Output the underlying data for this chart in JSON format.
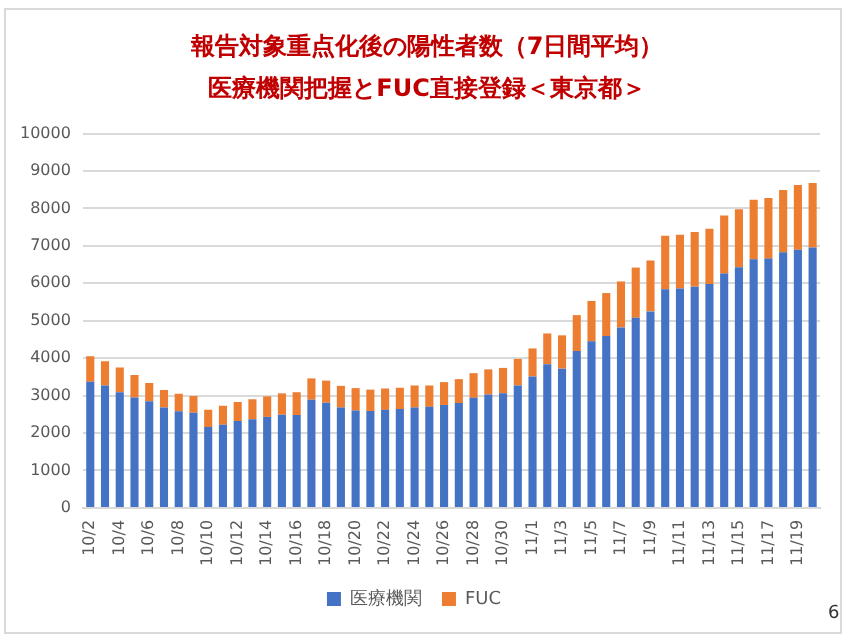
{
  "chart_data": {
    "type": "bar",
    "title": "報告対象重点化後の陽性者数（7日間平均）",
    "subtitle": "医療機関把握とFUC直接登録＜東京都＞",
    "categories": [
      "10/2",
      null,
      "10/4",
      null,
      "10/6",
      null,
      "10/8",
      null,
      "10/10",
      null,
      "10/12",
      null,
      "10/14",
      null,
      "10/16",
      null,
      "10/18",
      null,
      "10/20",
      null,
      "10/22",
      null,
      "10/24",
      null,
      "10/26",
      null,
      "10/28",
      null,
      "10/30",
      null,
      "11/1",
      null,
      "11/3",
      null,
      "11/5",
      null,
      "11/7",
      null,
      "11/9",
      null,
      "11/11",
      null,
      "11/13",
      null,
      "11/15",
      null,
      "11/17",
      null,
      "11/19",
      null
    ],
    "series": [
      {
        "name": "医療機関",
        "color": "#4472c4",
        "values": [
          3370,
          3270,
          3090,
          2950,
          2850,
          2680,
          2580,
          2540,
          2160,
          2220,
          2320,
          2370,
          2430,
          2490,
          2480,
          2890,
          2810,
          2680,
          2600,
          2590,
          2620,
          2640,
          2680,
          2700,
          2750,
          2800,
          2940,
          3030,
          3060,
          3270,
          3510,
          3840,
          3720,
          4190,
          4450,
          4590,
          4820,
          5080,
          5250,
          5840,
          5860,
          5910,
          5980,
          6260,
          6430,
          6640,
          6660,
          6830,
          6900,
          6960
        ]
      },
      {
        "name": "FUC",
        "color": "#ed7d31",
        "values": [
          680,
          650,
          660,
          600,
          490,
          470,
          470,
          450,
          460,
          510,
          510,
          530,
          550,
          570,
          610,
          570,
          590,
          580,
          600,
          570,
          570,
          570,
          590,
          570,
          610,
          640,
          660,
          670,
          680,
          710,
          750,
          820,
          890,
          960,
          1080,
          1150,
          1230,
          1340,
          1360,
          1430,
          1440,
          1460,
          1480,
          1550,
          1550,
          1590,
          1620,
          1660,
          1730,
          1720
        ]
      }
    ],
    "stacked": true,
    "ylim": [
      0,
      10000
    ],
    "yticks": [
      0,
      1000,
      2000,
      3000,
      4000,
      5000,
      6000,
      7000,
      8000,
      9000,
      10000
    ],
    "grid": "y",
    "legend": "bottom",
    "annotations": [
      "6"
    ]
  }
}
